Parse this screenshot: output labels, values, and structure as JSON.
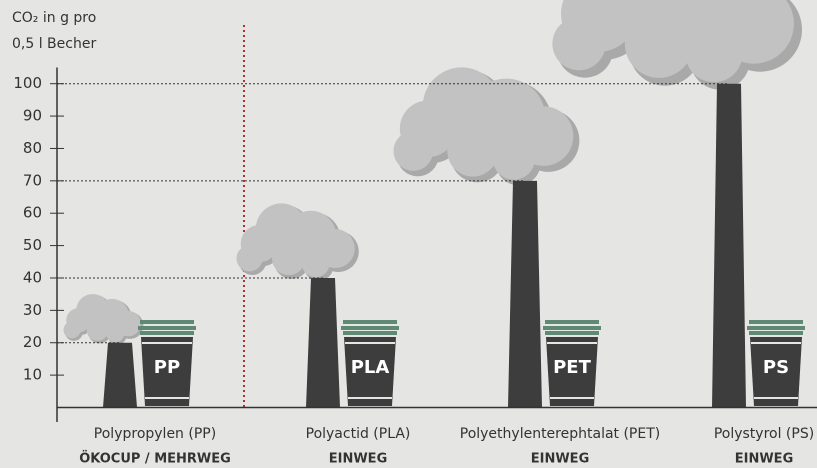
{
  "chart_data": {
    "type": "smokestack",
    "y_label": [
      "CO₂ in g pro",
      "0,5 l Becher"
    ],
    "categories": [
      "Polypropylen (PP)",
      "Polyactid (PLA)",
      "Polyethylenterephtalat (PET)",
      "Polystyrol (PS)"
    ],
    "sublabels": [
      "ÖKOCUP / MEHRWEG",
      "EINWEG",
      "EINWEG",
      "EINWEG"
    ],
    "cup_labels": [
      "PP",
      "PLA",
      "PET",
      "PS"
    ],
    "values": [
      20,
      40,
      70,
      100
    ],
    "ylim": [
      0,
      105
    ],
    "yticks": [
      10,
      20,
      30,
      40,
      50,
      60,
      70,
      80,
      90,
      100
    ],
    "color": "#3d3d3d",
    "cloud_color": "#c2c2c2",
    "cloud_shade": "#a9a9a9",
    "cup_color": "#3d3d3d",
    "lid_color": "#5e8a74",
    "separator_color": "#b03030"
  }
}
